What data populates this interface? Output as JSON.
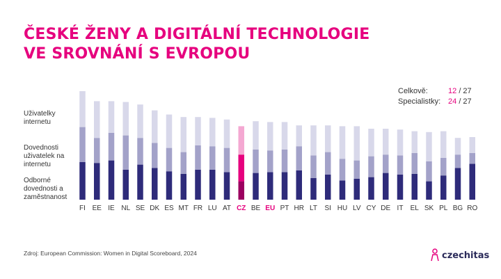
{
  "title_lines": [
    "ČESKÉ ŽENY A DIGITÁLNÍ TECHNOLOGIE",
    "VE SROVNÁNÍ S EVROPOU"
  ],
  "ranking": {
    "rows": [
      {
        "label": "Celkově:",
        "position": "12",
        "total": "/ 27"
      },
      {
        "label": "Specialistky:",
        "position": "24",
        "total": "/ 27"
      }
    ]
  },
  "side_labels": {
    "internet_users": "Uživatelky internetu",
    "internet_skills": "Dovednosti uživatelek na internetu",
    "specialist_skills": "Odborné dovednosti a zaměstnanost"
  },
  "source": "Zdroj: European Commission: Women in Digital Scoreboard, 2024",
  "logo": {
    "text": "czechitas"
  },
  "colors": {
    "title": "#e6007e",
    "series_bottom": "#2e2b7a",
    "series_middle": "#a3a2c9",
    "series_top": "#d8d8ea",
    "highlight_bottom": "#9c0060",
    "highlight_middle": "#e6007e",
    "highlight_top": "#f4a8d2"
  },
  "chart_data": {
    "type": "bar",
    "stacked": true,
    "categories": [
      "FI",
      "EE",
      "IE",
      "NL",
      "SE",
      "DK",
      "ES",
      "MT",
      "FR",
      "LU",
      "AT",
      "CZ",
      "BE",
      "EU",
      "PT",
      "HR",
      "LT",
      "SI",
      "HU",
      "LV",
      "CY",
      "DE",
      "IT",
      "EL",
      "SK",
      "PL",
      "BG",
      "RO"
    ],
    "highlight_categories": [
      "CZ",
      "EU"
    ],
    "series": [
      {
        "values": [
          22.5,
          22.0,
          23.5,
          18.0,
          21.0,
          19.0,
          17.0,
          15.5,
          18.0,
          18.0,
          16.5,
          11.0,
          16.0,
          16.5,
          16.5,
          17.5,
          13.0,
          15.0,
          11.5,
          12.5,
          13.5,
          16.0,
          15.0,
          15.5,
          11.0,
          14.5,
          19.0,
          21.5
        ]
      },
      {
        "values": [
          21.0,
          15.0,
          16.5,
          20.5,
          16.0,
          15.0,
          14.0,
          13.0,
          14.5,
          14.0,
          14.5,
          16.0,
          14.0,
          13.0,
          13.5,
          14.5,
          13.5,
          13.5,
          13.0,
          11.0,
          12.5,
          11.0,
          11.5,
          12.5,
          12.0,
          10.5,
          8.0,
          6.5
        ]
      },
      {
        "values": [
          21.5,
          22.0,
          19.0,
          20.0,
          20.0,
          19.5,
          20.0,
          21.0,
          17.0,
          17.0,
          17.0,
          17.0,
          17.0,
          17.0,
          16.5,
          12.5,
          18.0,
          16.0,
          19.5,
          20.5,
          16.5,
          15.5,
          15.5,
          13.0,
          17.5,
          16.0,
          10.0,
          9.5
        ]
      }
    ]
  }
}
